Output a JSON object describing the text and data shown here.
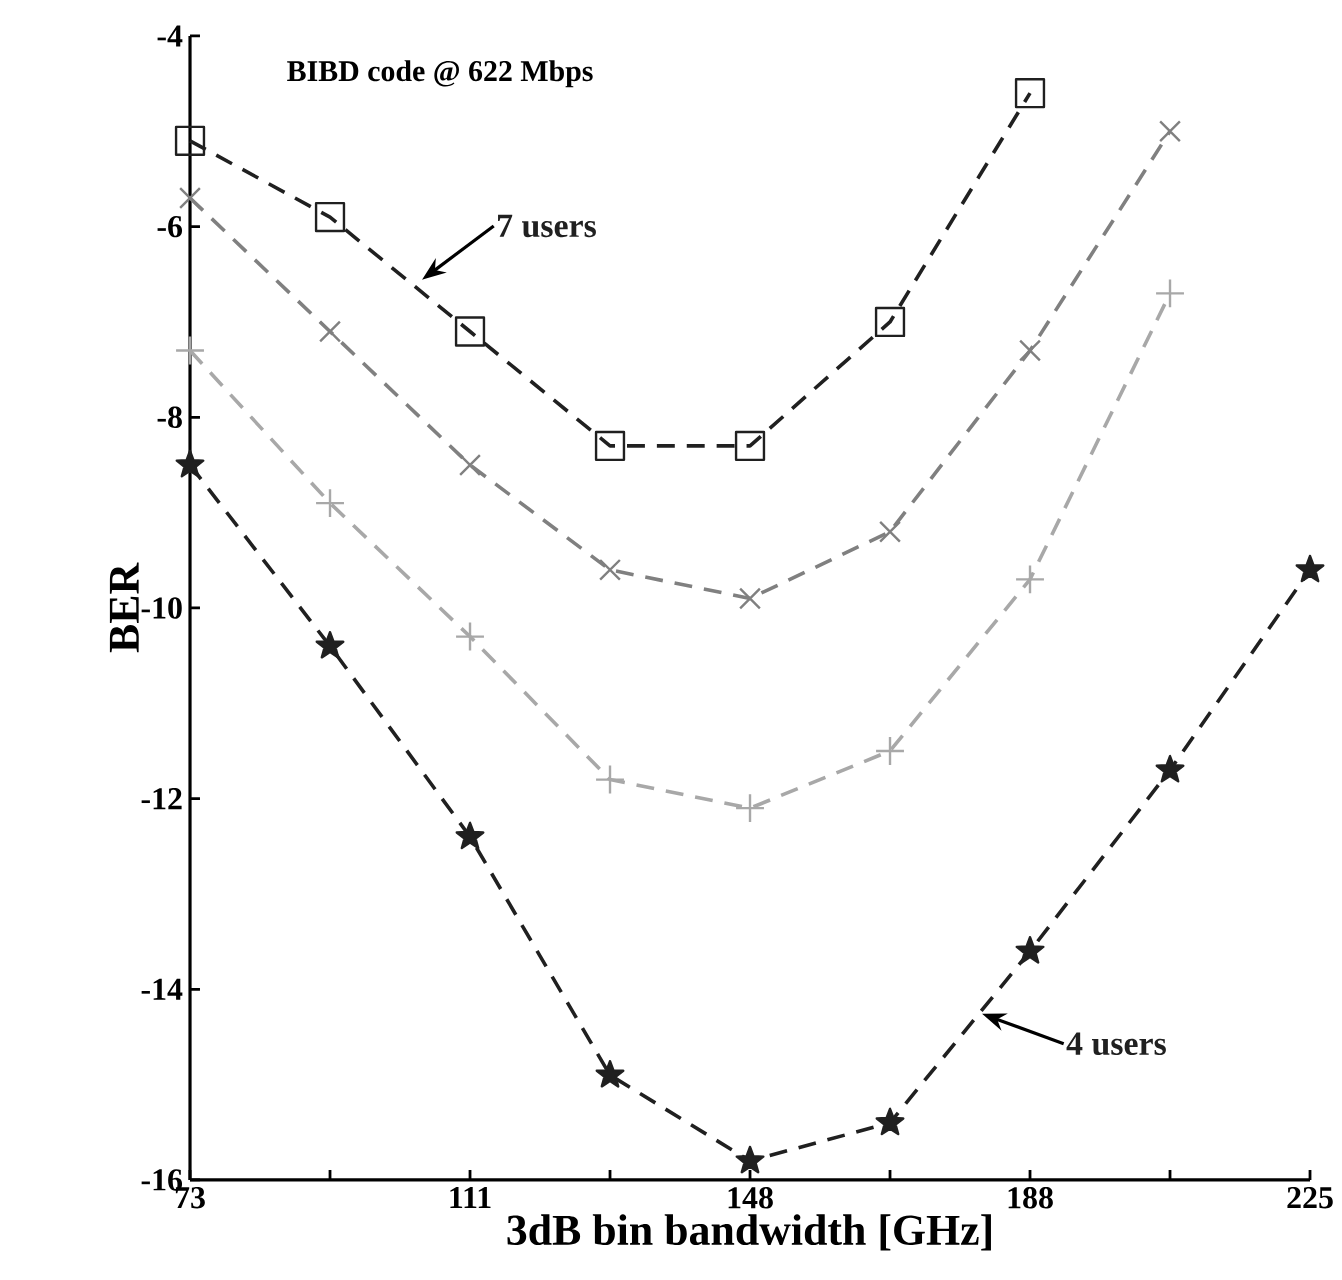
{
  "chart_data": {
    "type": "line",
    "title": "BIBD code @ 622 Mbps",
    "xlabel": "3dB bin bandwidth [GHz]",
    "ylabel": "BER",
    "categories": [
      "73",
      null,
      "111",
      null,
      "148",
      null,
      "188",
      null,
      "225"
    ],
    "ylim": [
      -16,
      -4
    ],
    "yticks": [
      -16,
      -14,
      -12,
      -10,
      -8,
      -6,
      -4
    ],
    "grid": false,
    "legend": false,
    "line_style": "dashed",
    "series": [
      {
        "name": "7 users",
        "color": "#202020",
        "marker": "square",
        "values": [
          -5.1,
          -5.9,
          -7.1,
          -8.3,
          -8.3,
          -7.0,
          -4.6,
          null,
          null
        ]
      },
      {
        "color": "#808080",
        "marker": "cross",
        "values": [
          -5.7,
          -7.1,
          -8.5,
          -9.6,
          -9.9,
          -9.2,
          -7.3,
          -5.0,
          null
        ]
      },
      {
        "color": "#a8a8a8",
        "marker": "plus",
        "values": [
          -7.3,
          -8.9,
          -10.3,
          -11.8,
          -12.1,
          -11.5,
          -9.7,
          -6.7,
          null
        ]
      },
      {
        "name": "4 users",
        "color": "#202020",
        "marker": "star",
        "values": [
          -8.5,
          -10.4,
          -12.4,
          -14.9,
          -15.8,
          -15.4,
          -13.6,
          -11.7,
          -9.6
        ]
      }
    ]
  }
}
